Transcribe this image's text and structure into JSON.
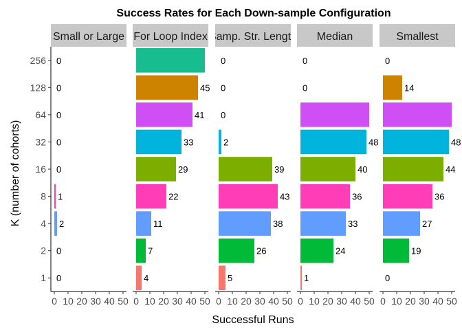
{
  "chart_data": {
    "type": "bar",
    "orientation": "horizontal",
    "title": "Success Rates for Each Down-sample Configuration",
    "xlabel": "Successful Runs",
    "ylabel": "K (number of cohorts)",
    "xlim": [
      0,
      50
    ],
    "x_ticks": [
      "0",
      "10",
      "20",
      "30",
      "40",
      "50"
    ],
    "categories": [
      "1",
      "2",
      "4",
      "8",
      "16",
      "32",
      "64",
      "128",
      "256"
    ],
    "category_colors": [
      "#F8766D",
      "#00BA38",
      "#619CFF",
      "#FF3DB6",
      "#7CAE00",
      "#00B4DE",
      "#D04FF5",
      "#CD8200",
      "#17BC8F"
    ],
    "panels": [
      {
        "strip": "Small or Large",
        "values": [
          0,
          0,
          2,
          1,
          0,
          0,
          0,
          0,
          0
        ]
      },
      {
        "strip": "For Loop Index",
        "values": [
          4,
          7,
          11,
          22,
          29,
          33,
          41,
          45,
          50
        ]
      },
      {
        "strip": "Samp. Str. Length",
        "values": [
          5,
          26,
          38,
          43,
          39,
          2,
          0,
          0,
          0
        ]
      },
      {
        "strip": "Median",
        "values": [
          1,
          24,
          33,
          36,
          40,
          48,
          50,
          0,
          0
        ]
      },
      {
        "strip": "Smallest",
        "values": [
          0,
          19,
          27,
          36,
          44,
          48,
          50,
          14,
          0
        ]
      }
    ],
    "data_labels": [
      [
        "0",
        "0",
        "2",
        "1",
        "0",
        "0",
        "0",
        "0",
        "0"
      ],
      [
        "4",
        "7",
        "11",
        "22",
        "29",
        "33",
        "41",
        "45",
        ""
      ],
      [
        "5",
        "26",
        "38",
        "43",
        "39",
        "2",
        "0",
        "0",
        "0"
      ],
      [
        "1",
        "24",
        "33",
        "36",
        "40",
        "48",
        "",
        "0",
        "0"
      ],
      [
        "0",
        "19",
        "27",
        "36",
        "44",
        "48",
        "",
        "14",
        "0"
      ]
    ],
    "grid": false,
    "legend": "none"
  }
}
